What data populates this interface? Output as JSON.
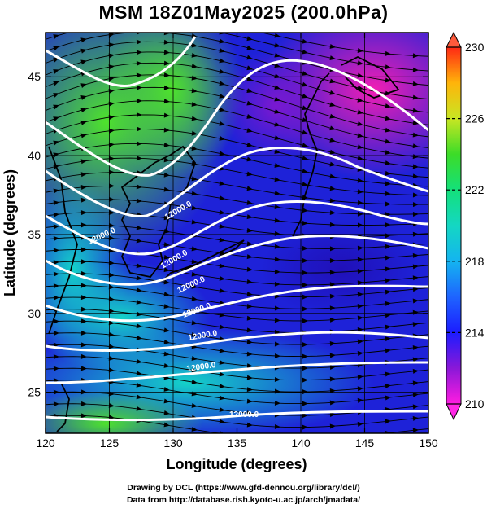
{
  "title": "MSM 18Z01May2025 (200.0hPa)",
  "map": {
    "x_axis": {
      "label": "Longitude (degrees)",
      "range": [
        120,
        150
      ],
      "ticks": [
        "120",
        "125",
        "130",
        "135",
        "140",
        "145",
        "150"
      ]
    },
    "y_axis": {
      "label": "Latitude (degrees)",
      "range": [
        22.4,
        47.8
      ],
      "ticks": [
        "25",
        "30",
        "35",
        "40",
        "45"
      ]
    },
    "gridlines": true,
    "field": "temperature",
    "colorbar": {
      "min": 210,
      "max": 230,
      "ticks": [
        "230",
        "226",
        "222",
        "218",
        "214",
        "210"
      ],
      "placement": "right"
    },
    "contours": [
      {
        "value": "12000.0"
      },
      {
        "value": "12000.0"
      },
      {
        "value": "12000.0"
      },
      {
        "value": "12000.0"
      },
      {
        "value": "12000.0"
      },
      {
        "value": "12000.0"
      },
      {
        "value": "12000.0"
      },
      {
        "value": "12000.0"
      }
    ],
    "colors": {
      "green": "#22d52a",
      "cyan": "#16c9c3",
      "blue": "#1e22d8",
      "magenta": "#e41fb7",
      "contour": "#ffffff",
      "streamline": "#000000"
    }
  },
  "credits": {
    "line1": "Drawing by DCL (https://www.gfd-dennou.org/library/dcl/)",
    "line2": "Data from http://database.rish.kyoto-u.ac.jp/arch/jmadata/"
  }
}
